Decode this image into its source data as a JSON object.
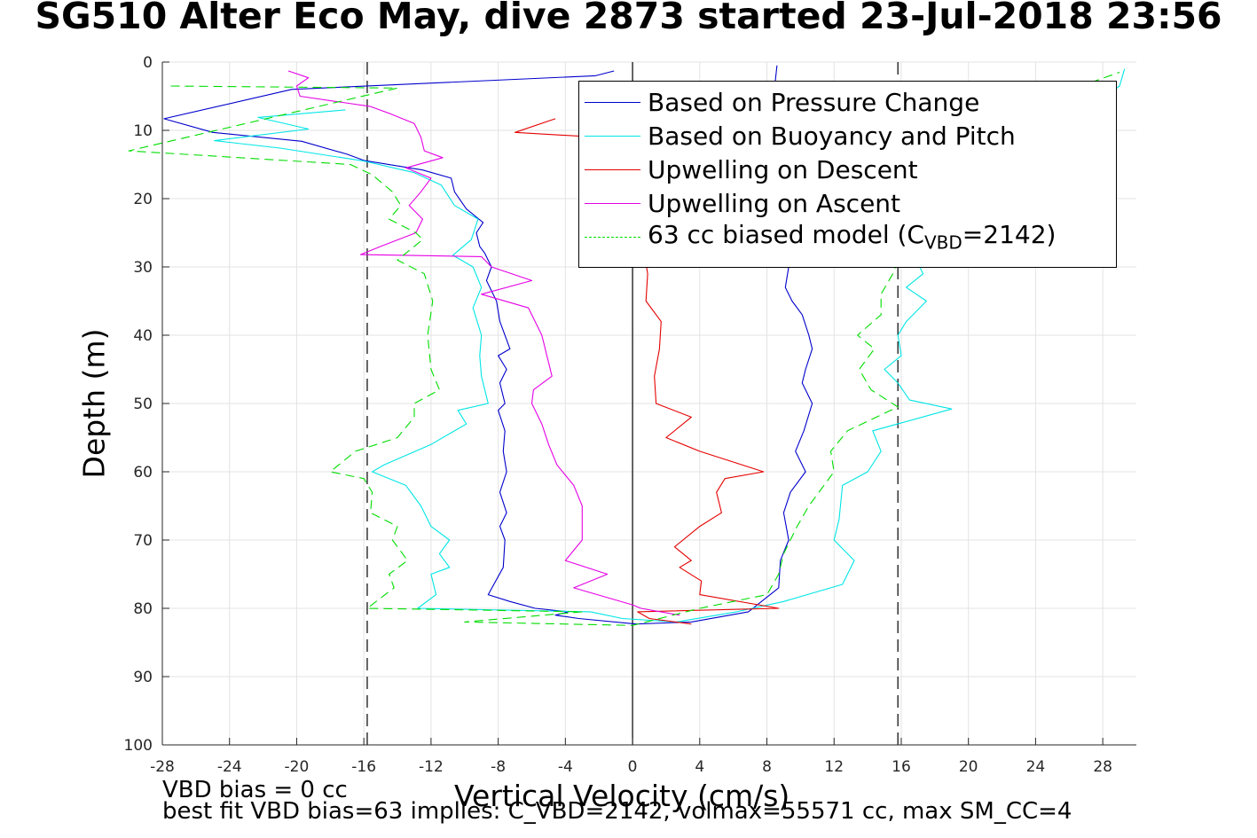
{
  "title": "SG510 Alter Eco May, dive 2873 started 23-Jul-2018 23:56",
  "footer": {
    "line1": "VBD bias = 0 cc",
    "line2": "best fit VBD bias=63 implies: C_VBD=2142, volmax=55571 cc, max SM_CC=4"
  },
  "legend": {
    "items": [
      {
        "label": "Based on Pressure Change",
        "color": "#0000cc",
        "dash": "solid"
      },
      {
        "label": "Based on Buoyancy and Pitch",
        "color": "#00e5e5",
        "dash": "solid"
      },
      {
        "label": "Upwelling on Descent",
        "color": "#e50000",
        "dash": "solid"
      },
      {
        "label": "Upwelling on Ascent",
        "color": "#e500e5",
        "dash": "solid"
      },
      {
        "label_prefix": "63 cc biased model (C",
        "label_sub": "VBD",
        "label_suffix": "=2142)",
        "color": "#00dd00",
        "dash": "dashed"
      }
    ]
  },
  "chart_data": {
    "type": "line",
    "xlabel": "Vertical Velocity (cm/s)",
    "ylabel": "Depth (m)",
    "xlim": [
      -28,
      30
    ],
    "ylim": [
      0,
      100
    ],
    "y_reversed": true,
    "xticks": [
      -28,
      -24,
      -20,
      -16,
      -12,
      -8,
      -4,
      0,
      4,
      8,
      12,
      16,
      20,
      24,
      28
    ],
    "yticks": [
      0,
      10,
      20,
      30,
      40,
      50,
      60,
      70,
      80,
      90,
      100
    ],
    "grid": true,
    "legend_position": "top-right",
    "reference_lines": [
      {
        "orientation": "vertical",
        "x": 0,
        "style": "solid",
        "color": "#000000"
      },
      {
        "orientation": "vertical",
        "x": -15.8,
        "style": "dashed",
        "color": "#000000"
      },
      {
        "orientation": "vertical",
        "x": 15.8,
        "style": "dashed",
        "color": "#000000"
      }
    ],
    "series": [
      {
        "name": "Based on Pressure Change",
        "color": "#0000cc",
        "dash": "solid",
        "points": [
          [
            -1.1,
            1.3
          ],
          [
            -2.2,
            2.0
          ],
          [
            -20.3,
            4.0
          ],
          [
            -27.9,
            8.3
          ],
          [
            -25.0,
            10.3
          ],
          [
            -19.7,
            11.6
          ],
          [
            -17.0,
            13.5
          ],
          [
            -16.0,
            14.4
          ],
          [
            -12.5,
            15.8
          ],
          [
            -10.8,
            17.0
          ],
          [
            -10.6,
            19.0
          ],
          [
            -9.9,
            21.5
          ],
          [
            -8.9,
            23.5
          ],
          [
            -9.3,
            25.0
          ],
          [
            -9.1,
            27.0
          ],
          [
            -8.8,
            28.0
          ],
          [
            -8.4,
            30.0
          ],
          [
            -8.7,
            32.0
          ],
          [
            -8.1,
            35.0
          ],
          [
            -7.9,
            38.0
          ],
          [
            -7.3,
            42.0
          ],
          [
            -8.0,
            43.0
          ],
          [
            -7.5,
            45.0
          ],
          [
            -7.9,
            47.0
          ],
          [
            -7.6,
            50.0
          ],
          [
            -8.0,
            51.0
          ],
          [
            -7.6,
            54.0
          ],
          [
            -7.7,
            57.0
          ],
          [
            -7.5,
            60.0
          ],
          [
            -7.9,
            63.0
          ],
          [
            -7.5,
            66.0
          ],
          [
            -7.9,
            68.0
          ],
          [
            -7.6,
            70.0
          ],
          [
            -7.7,
            74.0
          ],
          [
            -8.6,
            78.0
          ],
          [
            -7.3,
            79.0
          ],
          [
            -5.8,
            80.0
          ],
          [
            -3.8,
            80.5
          ],
          [
            -4.6,
            81.0
          ],
          [
            -3.2,
            81.5
          ],
          [
            0.2,
            82.3
          ],
          [
            3.5,
            82.0
          ],
          [
            6.9,
            80.5
          ],
          [
            8.7,
            77.0
          ],
          [
            8.8,
            73.0
          ],
          [
            9.3,
            70.0
          ],
          [
            9.0,
            66.0
          ],
          [
            9.4,
            63.0
          ],
          [
            10.3,
            60.0
          ],
          [
            9.7,
            57.0
          ],
          [
            10.2,
            54.0
          ],
          [
            10.7,
            50.0
          ],
          [
            10.1,
            47.0
          ],
          [
            10.3,
            45.0
          ],
          [
            10.7,
            42.0
          ],
          [
            10.5,
            40.0
          ],
          [
            10.1,
            37.0
          ],
          [
            9.5,
            35.0
          ],
          [
            9.1,
            33.0
          ],
          [
            9.3,
            30.0
          ],
          [
            8.6,
            27.0
          ],
          [
            8.9,
            22.0
          ],
          [
            8.6,
            18.0
          ],
          [
            8.8,
            12.0
          ],
          [
            8.4,
            5.0
          ],
          [
            8.6,
            0.5
          ]
        ]
      },
      {
        "name": "Based on Buoyancy and Pitch",
        "color": "#00e5e5",
        "dash": "solid",
        "points": [
          [
            -17.1,
            7.0
          ],
          [
            -22.3,
            8.1
          ],
          [
            -19.3,
            9.8
          ],
          [
            -24.9,
            11.5
          ],
          [
            -21.0,
            12.6
          ],
          [
            -16.0,
            14.5
          ],
          [
            -13.0,
            16.2
          ],
          [
            -11.4,
            18.0
          ],
          [
            -10.6,
            21.0
          ],
          [
            -9.2,
            23.0
          ],
          [
            -9.6,
            26.0
          ],
          [
            -10.7,
            28.3
          ],
          [
            -9.5,
            30.0
          ],
          [
            -9.0,
            33.0
          ],
          [
            -9.5,
            36.0
          ],
          [
            -9.0,
            40.0
          ],
          [
            -9.1,
            43.0
          ],
          [
            -9.0,
            46.0
          ],
          [
            -8.6,
            50.0
          ],
          [
            -10.4,
            51.0
          ],
          [
            -9.9,
            53.0
          ],
          [
            -12.0,
            56.0
          ],
          [
            -14.8,
            59.0
          ],
          [
            -15.5,
            60.0
          ],
          [
            -13.5,
            62.0
          ],
          [
            -12.6,
            65.0
          ],
          [
            -12.0,
            68.0
          ],
          [
            -10.9,
            70.0
          ],
          [
            -11.5,
            72.0
          ],
          [
            -10.9,
            74.0
          ],
          [
            -12.0,
            75.0
          ],
          [
            -11.7,
            78.0
          ],
          [
            -12.8,
            80.0
          ],
          [
            -2.5,
            80.5
          ],
          [
            -0.6,
            81.5
          ],
          [
            2.6,
            82.0
          ],
          [
            6.2,
            80.5
          ],
          [
            9.0,
            79.0
          ],
          [
            12.5,
            76.5
          ],
          [
            13.2,
            73.0
          ],
          [
            12.0,
            70.0
          ],
          [
            12.3,
            67.0
          ],
          [
            12.5,
            62.0
          ],
          [
            14.0,
            60.0
          ],
          [
            14.8,
            57.0
          ],
          [
            14.3,
            54.0
          ],
          [
            19.0,
            50.8
          ],
          [
            16.5,
            49.5
          ],
          [
            15.8,
            47.0
          ],
          [
            15.0,
            45.0
          ],
          [
            16.0,
            43.0
          ],
          [
            15.8,
            40.0
          ],
          [
            16.3,
            38.0
          ],
          [
            17.5,
            35.0
          ],
          [
            16.3,
            33.0
          ],
          [
            17.3,
            31.0
          ],
          [
            16.5,
            27.0
          ],
          [
            17.0,
            20.0
          ],
          [
            23.5,
            13.0
          ],
          [
            29.0,
            3.5
          ],
          [
            29.3,
            1.0
          ]
        ]
      },
      {
        "name": "Upwelling on Descent",
        "color": "#e50000",
        "dash": "solid",
        "points": [
          [
            -4.6,
            8.3
          ],
          [
            -7.0,
            10.3
          ],
          [
            -2.1,
            11.0
          ],
          [
            0.3,
            11.5
          ],
          [
            1.0,
            20.0
          ],
          [
            0.5,
            25.0
          ],
          [
            0.9,
            31.0
          ],
          [
            0.8,
            35.0
          ],
          [
            1.7,
            38.0
          ],
          [
            1.6,
            42.0
          ],
          [
            1.3,
            46.0
          ],
          [
            1.4,
            50.0
          ],
          [
            3.5,
            52.0
          ],
          [
            2.0,
            55.0
          ],
          [
            4.0,
            57.0
          ],
          [
            7.8,
            60.0
          ],
          [
            5.5,
            61.0
          ],
          [
            5.0,
            63.0
          ],
          [
            5.3,
            66.0
          ],
          [
            4.0,
            68.0
          ],
          [
            2.5,
            71.0
          ],
          [
            3.5,
            73.0
          ],
          [
            2.8,
            74.0
          ],
          [
            4.1,
            76.0
          ],
          [
            4.0,
            78.0
          ],
          [
            8.7,
            80.0
          ],
          [
            0.3,
            80.5
          ],
          [
            1.0,
            81.5
          ],
          [
            3.5,
            82.3
          ]
        ]
      },
      {
        "name": "Upwelling on Ascent",
        "color": "#e500e5",
        "dash": "solid",
        "points": [
          [
            -20.5,
            1.3
          ],
          [
            -19.3,
            2.3
          ],
          [
            -20.0,
            3.5
          ],
          [
            -19.8,
            5.0
          ],
          [
            -15.6,
            6.5
          ],
          [
            -14.5,
            7.5
          ],
          [
            -13.0,
            9.0
          ],
          [
            -12.6,
            11.0
          ],
          [
            -12.4,
            13.0
          ],
          [
            -11.3,
            14.0
          ],
          [
            -13.5,
            15.5
          ],
          [
            -12.0,
            17.0
          ],
          [
            -12.6,
            19.0
          ],
          [
            -13.3,
            21.0
          ],
          [
            -12.5,
            23.0
          ],
          [
            -12.9,
            25.0
          ],
          [
            -15.0,
            27.0
          ],
          [
            -16.2,
            28.2
          ],
          [
            -9.0,
            28.5
          ],
          [
            -8.4,
            30.0
          ],
          [
            -6.0,
            32.0
          ],
          [
            -9.0,
            34.0
          ],
          [
            -6.2,
            36.0
          ],
          [
            -5.4,
            40.0
          ],
          [
            -5.0,
            44.0
          ],
          [
            -4.8,
            46.0
          ],
          [
            -5.9,
            48.0
          ],
          [
            -6.0,
            50.0
          ],
          [
            -5.4,
            53.0
          ],
          [
            -5.0,
            56.0
          ],
          [
            -4.5,
            59.0
          ],
          [
            -3.5,
            62.0
          ],
          [
            -3.0,
            65.0
          ],
          [
            -3.0,
            70.0
          ],
          [
            -4.0,
            73.0
          ],
          [
            -1.5,
            75.0
          ],
          [
            -3.5,
            77.0
          ],
          [
            0.0,
            79.5
          ],
          [
            0.5,
            80.0
          ],
          [
            2.8,
            81.0
          ]
        ]
      },
      {
        "name": "63 cc biased model (CVBD=2142)",
        "color": "#00dd00",
        "dash": "dashed",
        "points": [
          [
            -27.5,
            3.5
          ],
          [
            -14.0,
            3.8
          ],
          [
            -30.0,
            13.0
          ],
          [
            -16.8,
            15.0
          ],
          [
            -15.5,
            16.5
          ],
          [
            -14.3,
            19.0
          ],
          [
            -13.8,
            21.0
          ],
          [
            -14.5,
            23.0
          ],
          [
            -12.9,
            25.0
          ],
          [
            -12.5,
            26.0
          ],
          [
            -14.0,
            29.0
          ],
          [
            -12.4,
            31.0
          ],
          [
            -11.9,
            35.0
          ],
          [
            -12.2,
            40.0
          ],
          [
            -12.0,
            45.0
          ],
          [
            -11.5,
            48.0
          ],
          [
            -13.0,
            50.0
          ],
          [
            -13.0,
            52.0
          ],
          [
            -14.0,
            55.0
          ],
          [
            -16.5,
            57.0
          ],
          [
            -18.0,
            60.0
          ],
          [
            -16.0,
            61.0
          ],
          [
            -15.5,
            63.0
          ],
          [
            -15.6,
            66.0
          ],
          [
            -14.0,
            68.0
          ],
          [
            -14.3,
            70.0
          ],
          [
            -13.4,
            73.0
          ],
          [
            -14.5,
            75.0
          ],
          [
            -14.2,
            77.0
          ],
          [
            -15.8,
            80.0
          ],
          [
            -3.0,
            80.5
          ],
          [
            -10.0,
            82.0
          ],
          [
            0.0,
            82.5
          ],
          [
            4.0,
            80.0
          ],
          [
            8.0,
            78.0
          ],
          [
            8.7,
            75.0
          ],
          [
            9.0,
            72.0
          ],
          [
            9.8,
            68.0
          ],
          [
            10.5,
            65.0
          ],
          [
            12.0,
            60.0
          ],
          [
            11.8,
            57.0
          ],
          [
            12.8,
            54.0
          ],
          [
            15.8,
            50.5
          ],
          [
            14.2,
            48.0
          ],
          [
            13.5,
            45.0
          ],
          [
            14.4,
            42.0
          ],
          [
            13.4,
            40.0
          ],
          [
            14.8,
            37.0
          ],
          [
            14.8,
            34.0
          ],
          [
            15.5,
            31.0
          ],
          [
            16.0,
            28.0
          ],
          [
            17.0,
            20.0
          ],
          [
            20.0,
            13.0
          ],
          [
            25.0,
            5.0
          ],
          [
            29.0,
            1.5
          ]
        ]
      }
    ]
  }
}
